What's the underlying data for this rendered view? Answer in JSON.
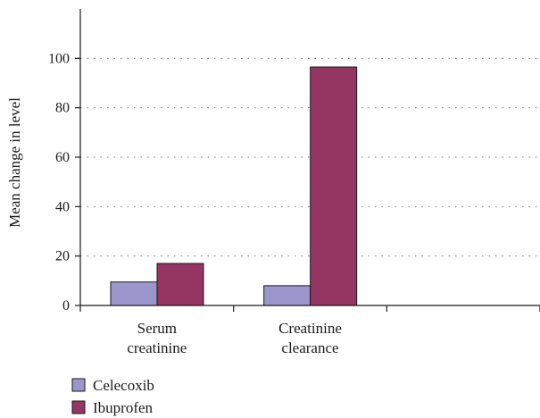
{
  "chart_data": {
    "type": "bar",
    "categories": [
      "Serum creatinine",
      "Creatinine clearance",
      ""
    ],
    "category_lines": [
      [
        "Serum",
        "creatinine"
      ],
      [
        "Creatinine",
        "clearance"
      ],
      []
    ],
    "series": [
      {
        "name": "Celecoxib",
        "values": [
          9.5,
          8,
          null
        ],
        "color": "#9b96cc"
      },
      {
        "name": "Ibuprofen",
        "values": [
          17,
          96.5,
          null
        ],
        "color": "#953562"
      }
    ],
    "ylabel": "Mean change in level",
    "ylim": [
      0,
      120
    ],
    "yticks": [
      0,
      20,
      40,
      60,
      80,
      100
    ],
    "grid": true,
    "legend_position": "bottom-left"
  }
}
